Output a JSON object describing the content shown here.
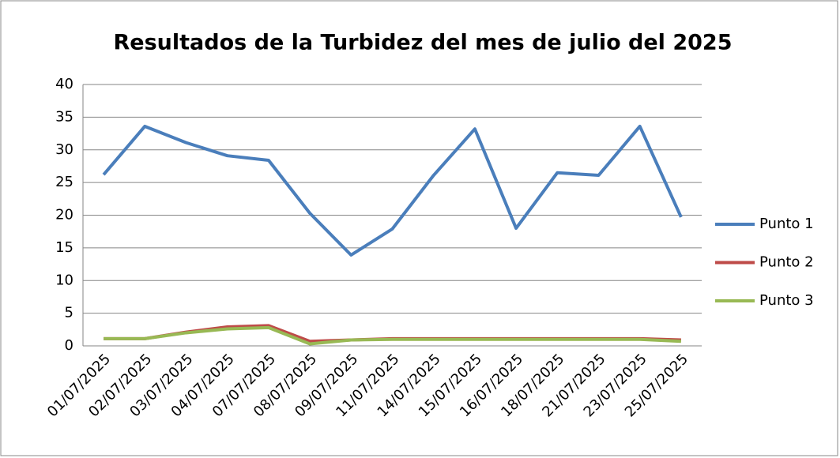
{
  "chart_data": {
    "type": "line",
    "title": "Resultados de la Turbidez del mes de julio del 2025",
    "categories": [
      "01/07/2025",
      "02/07/2025",
      "03/07/2025",
      "04/07/2025",
      "07/07/2025",
      "08/07/2025",
      "09/07/2025",
      "11/07/2025",
      "14/07/2025",
      "15/07/2025",
      "16/07/2025",
      "18/07/2025",
      "21/07/2025",
      "23/07/2025",
      "25/07/2025"
    ],
    "series": [
      {
        "name": "Punto 1",
        "color": "#4a7ebb",
        "values": [
          26.2,
          33.6,
          31.1,
          29.1,
          28.4,
          20.3,
          13.9,
          17.9,
          26.1,
          33.2,
          18.0,
          26.5,
          26.1,
          33.6,
          19.7
        ]
      },
      {
        "name": "Punto 2",
        "color": "#be4b48",
        "values": [
          1.1,
          1.1,
          2.1,
          2.9,
          3.1,
          0.7,
          0.9,
          1.1,
          1.1,
          1.1,
          1.1,
          1.1,
          1.1,
          1.1,
          0.9
        ]
      },
      {
        "name": "Punto 3",
        "color": "#98b954",
        "values": [
          1.1,
          1.1,
          2.0,
          2.6,
          2.8,
          0.3,
          0.9,
          1.0,
          1.0,
          1.0,
          1.0,
          1.0,
          1.0,
          1.0,
          0.7
        ]
      }
    ],
    "ylim": [
      0,
      40
    ],
    "yticks": [
      0,
      5,
      10,
      15,
      20,
      25,
      30,
      35,
      40
    ],
    "grid": true,
    "legend": "right"
  }
}
